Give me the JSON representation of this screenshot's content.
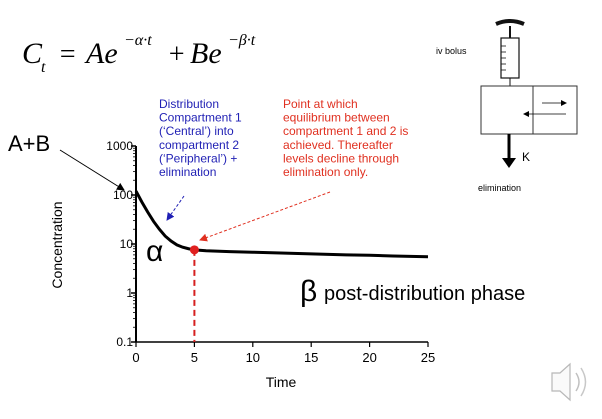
{
  "equation": {
    "lhs": "C",
    "lhs_sub": "t",
    "eq": "=",
    "term1": "Ae",
    "term1_sup": "−α·t",
    "plus": "+",
    "term2": "Be",
    "term2_sup": "−β·t"
  },
  "labels": {
    "a_plus_b": "A+B",
    "alpha": "α",
    "beta": "β",
    "post_distribution": "post-distribution phase"
  },
  "annotations": {
    "distribution": [
      "Distribution",
      "Compartment 1",
      "(‘Central’)  into",
      "compartment 2",
      "(‘Peripheral’) +",
      "elimination"
    ],
    "equilibrium": [
      "Point at which",
      "equilibrium between",
      "compartment 1 and 2 is",
      "achieved. Thereafter",
      "levels decline through",
      "elimination only."
    ]
  },
  "diagram": {
    "iv_bolus": "iv bolus",
    "k": "K",
    "elimination": "elimination"
  },
  "colors": {
    "curve": "#000000",
    "distribution_text": "#1f1fb4",
    "equilibrium_text": "#e03020",
    "marker": "#e02020",
    "dashed": "#d62020"
  },
  "icons": {
    "speaker": "speaker-icon"
  },
  "chart_data": {
    "type": "line",
    "xlabel": "Time",
    "ylabel": "Concentration",
    "xlim": [
      0,
      25
    ],
    "ylim": [
      0.1,
      1000
    ],
    "yscale": "log",
    "xticks": [
      0,
      5,
      10,
      15,
      20,
      25
    ],
    "yticks": [
      0.1,
      1,
      10,
      100,
      1000
    ],
    "ytick_labels": [
      "0.1",
      "1",
      "10",
      "100",
      "1000"
    ],
    "xtick_labels": [
      "0",
      "5",
      "10",
      "15",
      "20",
      "25"
    ],
    "grid": false,
    "series": [
      {
        "x": [
          0,
          0.5,
          1,
          1.5,
          2,
          2.5,
          3,
          3.5,
          4,
          4.5,
          5,
          6,
          8,
          10,
          12,
          15,
          18,
          20,
          22,
          25
        ],
        "values": [
          120,
          72,
          45,
          29,
          20,
          14.5,
          11.5,
          9.6,
          8.6,
          8.0,
          7.6,
          7.3,
          7.0,
          6.8,
          6.6,
          6.3,
          6.0,
          5.9,
          5.7,
          5.5
        ]
      }
    ],
    "marker_point": {
      "x": 5,
      "y": 7.6
    }
  }
}
